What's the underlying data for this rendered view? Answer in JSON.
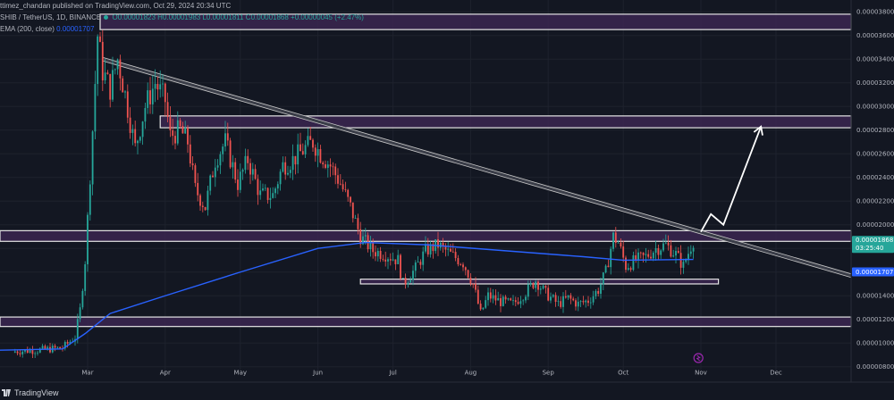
{
  "header": {
    "published": "ttimez_chandan published on TradingView.com, Oct 29, 2024 20:34 UTC",
    "symbol": "SHIB / TetherUS, 1D, BINANCE",
    "ohlc": "O0.00001823  H0.00001983  L0.00001811  C0.00001868  +0.00000045 (+2.47%)",
    "ema_label": "EMA (200, close)",
    "ema_value": "0.00001707"
  },
  "footer": {
    "brand": "TradingView"
  },
  "price_tags": {
    "last_price": "0.00001868",
    "countdown": "03:25:40",
    "ema_price": "0.00001707"
  },
  "colors": {
    "background": "#131722",
    "up": "#26a69a",
    "down": "#ef5350",
    "ema": "#2962ff",
    "zone_fill": "#3b2650",
    "zone_border": "#e6e6e6",
    "trendline": "#c8c8c8",
    "arrow": "#ffffff"
  },
  "chart_data": {
    "type": "candlestick",
    "symbol": "SHIB / TetherUS",
    "timeframe": "1D",
    "exchange": "BINANCE",
    "x_tick_labels": [
      "Mar",
      "Apr",
      "May",
      "Jun",
      "Jul",
      "Aug",
      "Sep",
      "Oct",
      "Nov",
      "Dec"
    ],
    "x_tick_dates": [
      "2024-03-01",
      "2024-04-01",
      "2024-05-01",
      "2024-06-01",
      "2024-07-01",
      "2024-08-01",
      "2024-09-01",
      "2024-10-01",
      "2024-11-01",
      "2024-12-01"
    ],
    "y_tick_labels": [
      "0.00003800",
      "0.00003600",
      "0.00003400",
      "0.00003200",
      "0.00003000",
      "0.00002800",
      "0.00002600",
      "0.00002400",
      "0.00002200",
      "0.00002000",
      "0.00001800",
      "0.00001600",
      "0.00001400",
      "0.00001200",
      "0.00001000",
      "0.00000800"
    ],
    "ylim": [
      7.3e-06,
      3.9e-05
    ],
    "xlim": [
      "2024-01-26",
      "2024-12-31"
    ],
    "close_series": [
      {
        "date": "2024-02-01",
        "close": 9.3e-06
      },
      {
        "date": "2024-02-10",
        "close": 9.4e-06
      },
      {
        "date": "2024-02-20",
        "close": 9.6e-06
      },
      {
        "date": "2024-02-25",
        "close": 1.05e-05
      },
      {
        "date": "2024-02-27",
        "close": 1.28e-05
      },
      {
        "date": "2024-02-29",
        "close": 1.7e-05
      },
      {
        "date": "2024-03-01",
        "close": 2.05e-05
      },
      {
        "date": "2024-03-03",
        "close": 2.8e-05
      },
      {
        "date": "2024-03-05",
        "close": 3.6e-05
      },
      {
        "date": "2024-03-07",
        "close": 3.3e-05
      },
      {
        "date": "2024-03-10",
        "close": 3.15e-05
      },
      {
        "date": "2024-03-13",
        "close": 3.4e-05
      },
      {
        "date": "2024-03-16",
        "close": 3.1e-05
      },
      {
        "date": "2024-03-20",
        "close": 2.65e-05
      },
      {
        "date": "2024-03-24",
        "close": 3e-05
      },
      {
        "date": "2024-03-28",
        "close": 3.2e-05
      },
      {
        "date": "2024-04-01",
        "close": 3.05e-05
      },
      {
        "date": "2024-04-03",
        "close": 2.75e-05
      },
      {
        "date": "2024-04-07",
        "close": 2.8e-05
      },
      {
        "date": "2024-04-10",
        "close": 2.7e-05
      },
      {
        "date": "2024-04-13",
        "close": 2.3e-05
      },
      {
        "date": "2024-04-17",
        "close": 2.15e-05
      },
      {
        "date": "2024-04-21",
        "close": 2.55e-05
      },
      {
        "date": "2024-04-25",
        "close": 2.7e-05
      },
      {
        "date": "2024-04-30",
        "close": 2.35e-05
      },
      {
        "date": "2024-05-04",
        "close": 2.55e-05
      },
      {
        "date": "2024-05-09",
        "close": 2.25e-05
      },
      {
        "date": "2024-05-14",
        "close": 2.25e-05
      },
      {
        "date": "2024-05-18",
        "close": 2.5e-05
      },
      {
        "date": "2024-05-22",
        "close": 2.55e-05
      },
      {
        "date": "2024-05-27",
        "close": 2.65e-05
      },
      {
        "date": "2024-05-30",
        "close": 2.7e-05
      },
      {
        "date": "2024-06-02",
        "close": 2.6e-05
      },
      {
        "date": "2024-06-06",
        "close": 2.5e-05
      },
      {
        "date": "2024-06-10",
        "close": 2.35e-05
      },
      {
        "date": "2024-06-14",
        "close": 2.15e-05
      },
      {
        "date": "2024-06-18",
        "close": 1.9e-05
      },
      {
        "date": "2024-06-23",
        "close": 1.78e-05
      },
      {
        "date": "2024-06-28",
        "close": 1.75e-05
      },
      {
        "date": "2024-07-03",
        "close": 1.7e-05
      },
      {
        "date": "2024-07-05",
        "close": 1.5e-05
      },
      {
        "date": "2024-07-10",
        "close": 1.63e-05
      },
      {
        "date": "2024-07-14",
        "close": 1.78e-05
      },
      {
        "date": "2024-07-19",
        "close": 1.83e-05
      },
      {
        "date": "2024-07-24",
        "close": 1.75e-05
      },
      {
        "date": "2024-07-29",
        "close": 1.68e-05
      },
      {
        "date": "2024-08-02",
        "close": 1.5e-05
      },
      {
        "date": "2024-08-05",
        "close": 1.25e-05
      },
      {
        "date": "2024-08-08",
        "close": 1.4e-05
      },
      {
        "date": "2024-08-13",
        "close": 1.35e-05
      },
      {
        "date": "2024-08-18",
        "close": 1.33e-05
      },
      {
        "date": "2024-08-23",
        "close": 1.43e-05
      },
      {
        "date": "2024-08-27",
        "close": 1.53e-05
      },
      {
        "date": "2024-08-31",
        "close": 1.42e-05
      },
      {
        "date": "2024-09-05",
        "close": 1.33e-05
      },
      {
        "date": "2024-09-09",
        "close": 1.38e-05
      },
      {
        "date": "2024-09-13",
        "close": 1.33e-05
      },
      {
        "date": "2024-09-17",
        "close": 1.36e-05
      },
      {
        "date": "2024-09-21",
        "close": 1.45e-05
      },
      {
        "date": "2024-09-24",
        "close": 1.6e-05
      },
      {
        "date": "2024-09-27",
        "close": 1.9e-05
      },
      {
        "date": "2024-09-29",
        "close": 1.85e-05
      },
      {
        "date": "2024-10-02",
        "close": 1.65e-05
      },
      {
        "date": "2024-10-06",
        "close": 1.7e-05
      },
      {
        "date": "2024-10-10",
        "close": 1.73e-05
      },
      {
        "date": "2024-10-14",
        "close": 1.8e-05
      },
      {
        "date": "2024-10-18",
        "close": 1.83e-05
      },
      {
        "date": "2024-10-22",
        "close": 1.75e-05
      },
      {
        "date": "2024-10-25",
        "close": 1.65e-05
      },
      {
        "date": "2024-10-28",
        "close": 1.82e-05
      },
      {
        "date": "2024-10-29",
        "close": 1.868e-05
      }
    ],
    "ema_200": [
      {
        "date": "2024-01-26",
        "value": 9.4e-06
      },
      {
        "date": "2024-02-20",
        "value": 9.5e-06
      },
      {
        "date": "2024-02-29",
        "value": 1.08e-05
      },
      {
        "date": "2024-03-10",
        "value": 1.25e-05
      },
      {
        "date": "2024-04-01",
        "value": 1.4e-05
      },
      {
        "date": "2024-05-01",
        "value": 1.6e-05
      },
      {
        "date": "2024-06-01",
        "value": 1.8e-05
      },
      {
        "date": "2024-06-20",
        "value": 1.85e-05
      },
      {
        "date": "2024-07-15",
        "value": 1.83e-05
      },
      {
        "date": "2024-08-15",
        "value": 1.78e-05
      },
      {
        "date": "2024-09-15",
        "value": 1.73e-05
      },
      {
        "date": "2024-10-01",
        "value": 1.7e-05
      },
      {
        "date": "2024-10-29",
        "value": 1.707e-05
      }
    ],
    "zones": [
      {
        "from": 3.65e-05,
        "to": 3.78e-05,
        "start": "2024-03-06"
      },
      {
        "from": 2.82e-05,
        "to": 2.92e-05,
        "start": "2024-03-30"
      },
      {
        "from": 1.86e-05,
        "to": 1.95e-05,
        "start": "2024-01-26"
      },
      {
        "from": 1.5e-05,
        "to": 1.54e-05,
        "start": "2024-06-18",
        "end": "2024-11-08"
      },
      {
        "from": 1.14e-05,
        "to": 1.22e-05,
        "start": "2024-01-26"
      }
    ],
    "trendline": {
      "start": {
        "date": "2024-03-07",
        "value": 3.4e-05
      },
      "end": {
        "date": "2024-12-31",
        "value": 1.57e-05
      }
    },
    "projection_arrow": [
      {
        "date": "2024-11-01",
        "value": 1.94e-05
      },
      {
        "date": "2024-11-05",
        "value": 2.09e-05
      },
      {
        "date": "2024-11-10",
        "value": 2e-05
      },
      {
        "date": "2024-11-25",
        "value": 2.83e-05
      }
    ]
  }
}
